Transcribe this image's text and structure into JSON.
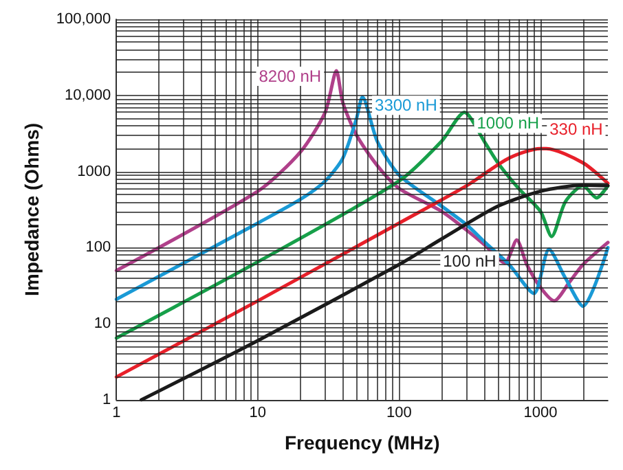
{
  "chart_data": {
    "type": "line",
    "xlabel": "Frequency (MHz)",
    "ylabel": "Impedance (Ohms)",
    "log": "xy",
    "grid": true,
    "marker": "none",
    "line_style": "solid",
    "xlim": [
      1,
      3000
    ],
    "ylim": [
      1,
      100000
    ],
    "xticks": [
      1,
      10,
      100,
      1000
    ],
    "yticks": [
      1,
      10,
      100,
      1000,
      {
        "value": 10000,
        "label": "10,000"
      },
      {
        "value": 100000,
        "label": "100,000"
      }
    ],
    "series": [
      {
        "name": "8200 nH",
        "color": "#b0408a",
        "x": [
          1,
          10,
          20,
          30,
          36,
          40,
          50,
          70,
          100,
          200,
          300,
          400,
          560,
          680,
          800,
          1000,
          1250,
          1600,
          2000,
          3000
        ],
        "values": [
          50,
          550,
          1800,
          6000,
          21000,
          8000,
          3000,
          1200,
          600,
          300,
          170,
          110,
          63,
          126,
          60,
          30,
          20,
          35,
          60,
          117
        ]
      },
      {
        "name": "3300 nH",
        "color": "#1a9ad6",
        "x": [
          1,
          10,
          20,
          30,
          40,
          50,
          55,
          70,
          100,
          200,
          300,
          400,
          600,
          900,
          1150,
          1500,
          2000,
          3000
        ],
        "values": [
          21,
          210,
          430,
          750,
          1500,
          5000,
          9500,
          2500,
          900,
          350,
          200,
          120,
          60,
          25,
          95,
          40,
          17,
          100
        ]
      },
      {
        "name": "1000 nH",
        "color": "#17a04a",
        "x": [
          1,
          10,
          100,
          200,
          290,
          400,
          500,
          700,
          1000,
          1200,
          1500,
          2000,
          2500,
          3000
        ],
        "values": [
          6.5,
          65,
          750,
          2500,
          6000,
          2500,
          1300,
          600,
          300,
          140,
          400,
          650,
          450,
          650
        ]
      },
      {
        "name": "330 nH",
        "color": "#e8202a",
        "x": [
          1,
          10,
          100,
          300,
          600,
          1000,
          1100,
          2000,
          3000
        ],
        "values": [
          2,
          20,
          210,
          650,
          1500,
          2000,
          2000,
          1300,
          700
        ]
      },
      {
        "name": "100 nH",
        "color": "#1a1a1a",
        "x": [
          1.5,
          10,
          100,
          200,
          500,
          1000,
          2000,
          3000
        ],
        "values": [
          1,
          6,
          60,
          130,
          350,
          550,
          660,
          650
        ]
      }
    ]
  }
}
